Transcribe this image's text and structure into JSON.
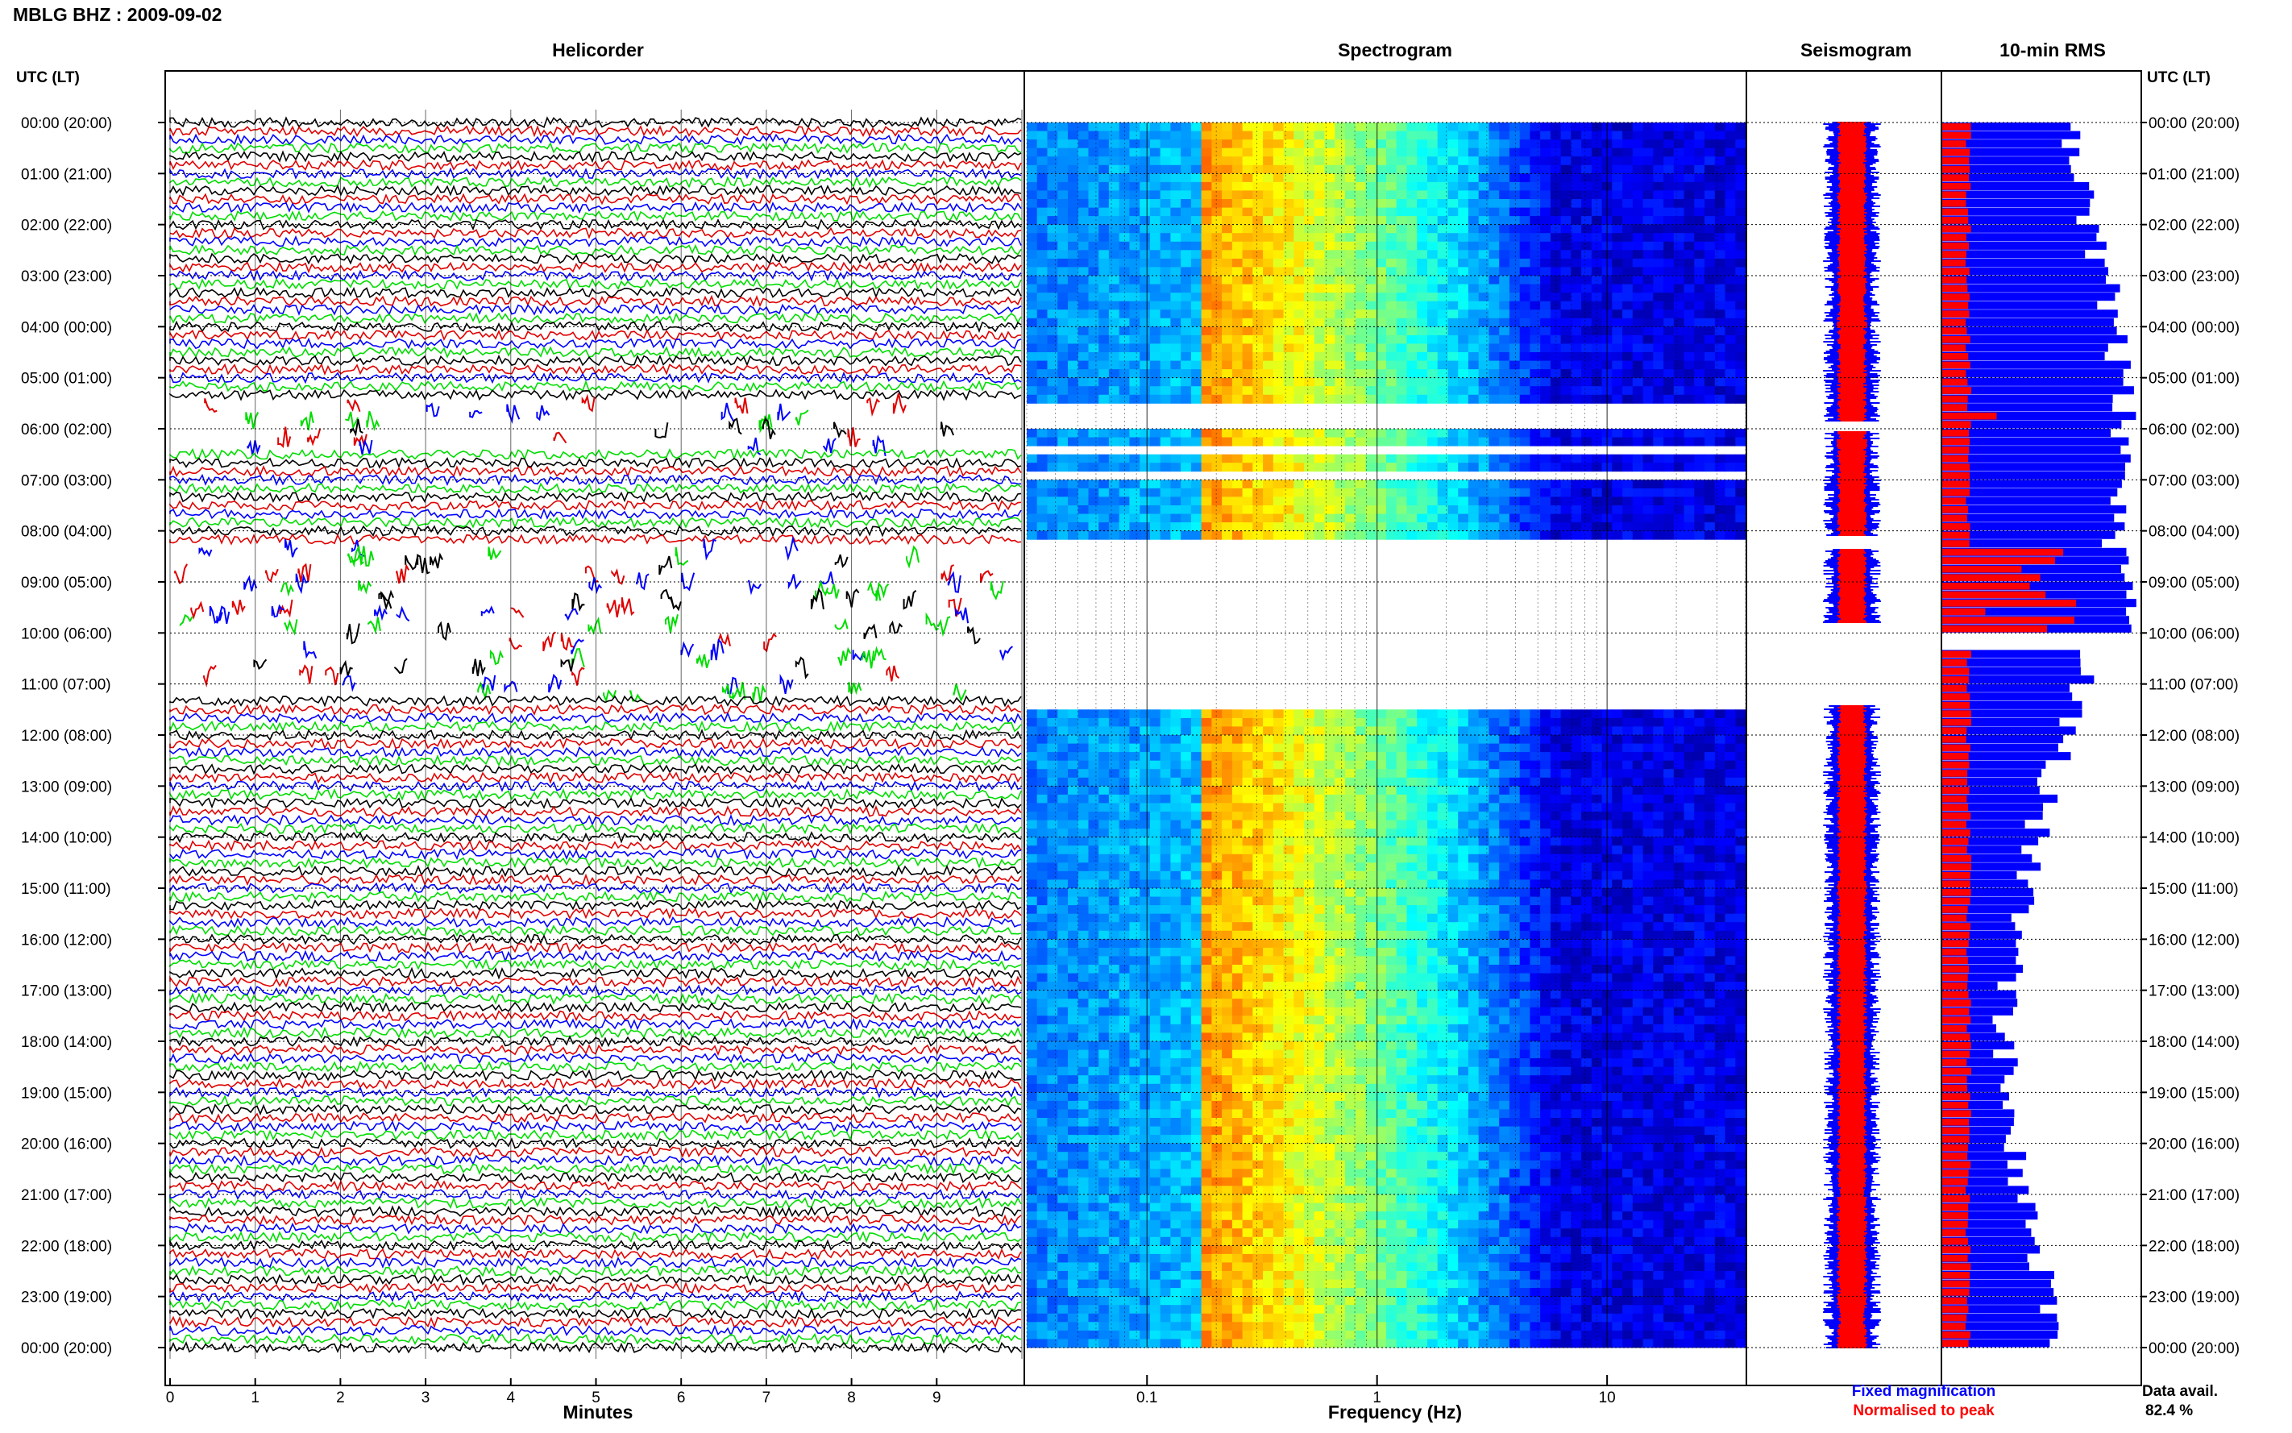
{
  "header": {
    "title": "MBLG BHZ : 2009-09-02"
  },
  "colors": {
    "trace": [
      "#000000",
      "#e00000",
      "#0000ff",
      "#00dd00"
    ],
    "fixed": "#0000ff",
    "normalised": "#ff0000",
    "frame": "#000000"
  },
  "chart_data": [
    {
      "type": "line",
      "title": "Helicorder",
      "xlabel": "Minutes",
      "ylabel": "UTC (LT)",
      "x_ticks": [
        "0",
        "1",
        "2",
        "3",
        "4",
        "5",
        "6",
        "7",
        "8",
        "9"
      ],
      "xlim": [
        0,
        10
      ],
      "y_ticks": [
        "00:00 (20:00)",
        "01:00 (21:00)",
        "02:00 (22:00)",
        "03:00 (23:00)",
        "04:00 (00:00)",
        "05:00 (01:00)",
        "06:00 (02:00)",
        "07:00 (03:00)",
        "08:00 (04:00)",
        "09:00 (05:00)",
        "10:00 (06:00)",
        "11:00 (07:00)",
        "12:00 (08:00)",
        "13:00 (09:00)",
        "14:00 (10:00)",
        "15:00 (11:00)",
        "16:00 (12:00)",
        "17:00 (13:00)",
        "18:00 (14:00)",
        "19:00 (15:00)",
        "20:00 (16:00)",
        "21:00 (17:00)",
        "22:00 (18:00)",
        "23:00 (19:00)",
        "00:00 (20:00)"
      ],
      "lines_per_hour": 6,
      "minutes_per_line": 10,
      "sparse_hours": [
        {
          "from": 5.5,
          "to": 6.4
        },
        {
          "from": 8.3,
          "to": 11.2
        }
      ]
    },
    {
      "type": "heatmap",
      "title": "Spectrogram",
      "xlabel": "Frequency (Hz)",
      "x_scale": "log",
      "xlim": [
        0.03,
        40
      ],
      "x_ticks": [
        "0.1",
        "1",
        "10"
      ],
      "colormap": "jet",
      "microseism_peak_hz": 0.18,
      "gaps_hours": [
        {
          "from": 5.5,
          "to": 6.0
        },
        {
          "from": 6.2,
          "to": 6.4
        },
        {
          "from": 6.7,
          "to": 7.0
        },
        {
          "from": 8.1,
          "to": 11.5
        }
      ]
    },
    {
      "type": "line",
      "title": "Seismogram",
      "series": [
        {
          "name": "Fixed magnification",
          "color": "#0000ff"
        },
        {
          "name": "Normalised to peak",
          "color": "#ff0000"
        }
      ],
      "gaps_hours": [
        {
          "from": 5.85,
          "to": 6.05
        },
        {
          "from": 8.1,
          "to": 8.35
        },
        {
          "from": 9.8,
          "to": 11.4
        }
      ]
    },
    {
      "type": "bar",
      "title": "10-min RMS",
      "orientation": "horizontal",
      "bins": 144,
      "series": [
        {
          "name": "Fixed magnification",
          "color": "#0000ff"
        },
        {
          "name": "Normalised to peak",
          "color": "#ff0000"
        }
      ],
      "y_ticks": [
        "00:00 (20:00)",
        "01:00 (21:00)",
        "02:00 (22:00)",
        "03:00 (23:00)",
        "04:00 (00:00)",
        "05:00 (01:00)",
        "06:00 (02:00)",
        "07:00 (03:00)",
        "08:00 (04:00)",
        "09:00 (05:00)",
        "10:00 (06:00)",
        "11:00 (07:00)",
        "12:00 (08:00)",
        "13:00 (09:00)",
        "14:00 (10:00)",
        "15:00 (11:00)",
        "16:00 (12:00)",
        "17:00 (13:00)",
        "18:00 (14:00)",
        "19:00 (15:00)",
        "20:00 (16:00)",
        "21:00 (17:00)",
        "22:00 (18:00)",
        "23:00 (19:00)",
        "00:00 (20:00)"
      ]
    }
  ],
  "legend": {
    "fixed": "Fixed magnification",
    "normalised": "Normalised to peak"
  },
  "availability": {
    "label": "Data avail.",
    "value": "82.4 %"
  }
}
